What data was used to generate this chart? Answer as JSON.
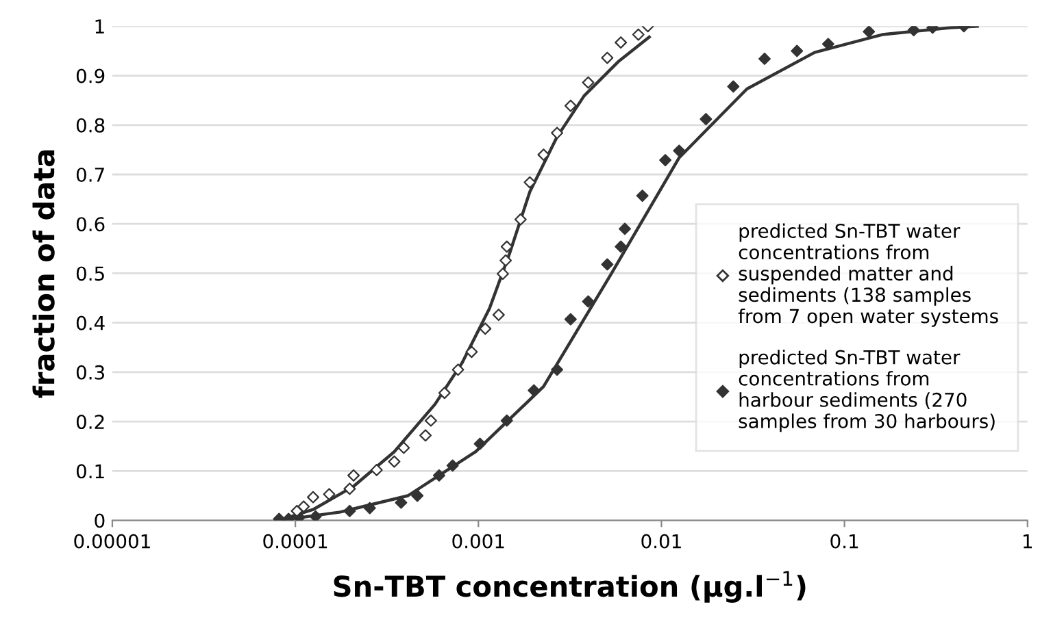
{
  "chart_data": {
    "type": "scatter",
    "xlabel": "Sn-TBT concentration (µg.l$^{−1}$)",
    "ylabel": "fraction of data",
    "log": "x",
    "xlim": [
      1e-05,
      1
    ],
    "ylim": [
      0,
      1
    ],
    "xticks": [
      {
        "value": 1e-05,
        "label": "0.00001"
      },
      {
        "value": 0.0001,
        "label": "0.0001"
      },
      {
        "value": 0.001,
        "label": "0.001"
      },
      {
        "value": 0.01,
        "label": "0.01"
      },
      {
        "value": 0.1,
        "label": "0.1"
      },
      1
    ],
    "yticks": [
      0,
      0.1,
      0.2,
      0.3,
      0.4,
      0.5,
      0.6,
      0.7,
      0.8,
      0.9,
      1
    ],
    "grid": "y",
    "legend": "right",
    "series": [
      {
        "name": "predicted Sn-TBT water concentrations from suspended matter and sediments (138 samples from 7 open water systems",
        "color": "#ffffff",
        "marker": "diamond",
        "x": [
          0.000102,
          0.000111,
          0.000125,
          0.000153,
          0.000198,
          0.000208,
          0.000278,
          0.000347,
          0.000391,
          0.000514,
          0.00055,
          0.000653,
          0.000774,
          0.000918,
          0.00109,
          0.00129,
          0.00136,
          0.00141,
          0.00143,
          0.0017,
          0.00191,
          0.00227,
          0.00269,
          0.00319,
          0.00398,
          0.00506,
          0.006,
          0.00748,
          0.00843
        ],
        "values": [
          0.019,
          0.028,
          0.047,
          0.053,
          0.064,
          0.091,
          0.102,
          0.119,
          0.147,
          0.172,
          0.202,
          0.258,
          0.305,
          0.341,
          0.388,
          0.416,
          0.499,
          0.526,
          0.554,
          0.609,
          0.684,
          0.74,
          0.784,
          0.839,
          0.886,
          0.936,
          0.967,
          0.983,
          1.0
        ]
      },
      {
        "name": "predicted Sn-TBT water concentrations from harbour sediments (270 samples from 30 harbours)",
        "color": "#333333",
        "marker": "diamond",
        "x": [
          8.15e-05,
          9.18e-05,
          0.000105,
          0.000129,
          0.000198,
          0.000255,
          0.000378,
          0.000464,
          0.00061,
          0.000723,
          0.00102,
          0.00143,
          0.00201,
          0.00269,
          0.00319,
          0.00398,
          0.00506,
          0.006,
          0.00631,
          0.00787,
          0.0105,
          0.0125,
          0.0175,
          0.0247,
          0.0366,
          0.055,
          0.0815,
          0.136,
          0.239,
          0.303,
          0.449
        ],
        "values": [
          0.003,
          0.003,
          0.006,
          0.008,
          0.019,
          0.025,
          0.036,
          0.05,
          0.091,
          0.111,
          0.155,
          0.202,
          0.263,
          0.305,
          0.407,
          0.443,
          0.518,
          0.554,
          0.59,
          0.657,
          0.729,
          0.748,
          0.812,
          0.878,
          0.934,
          0.95,
          0.964,
          0.989,
          0.992,
          0.997,
          1.0
        ]
      },
      {
        "type": "line",
        "color": "#333333",
        "x": [
          8.15e-05,
          0.000125,
          0.000208,
          0.000347,
          0.000579,
          0.000815,
          0.00115,
          0.00148,
          0.00191,
          0.00269,
          0.00378,
          0.0058,
          0.00858
        ],
        "values": [
          0,
          0.022,
          0.069,
          0.139,
          0.235,
          0.319,
          0.429,
          0.54,
          0.665,
          0.776,
          0.859,
          0.928,
          0.978
        ]
      },
      {
        "type": "line",
        "color": "#333333",
        "x": [
          8.15e-05,
          0.000176,
          0.000412,
          0.000966,
          0.00227,
          0.00532,
          0.0125,
          0.0293,
          0.0687,
          0.161,
          0.378,
          0.532
        ],
        "values": [
          0,
          0.017,
          0.05,
          0.139,
          0.271,
          0.499,
          0.734,
          0.873,
          0.947,
          0.983,
          0.997,
          1.0
        ]
      }
    ]
  }
}
